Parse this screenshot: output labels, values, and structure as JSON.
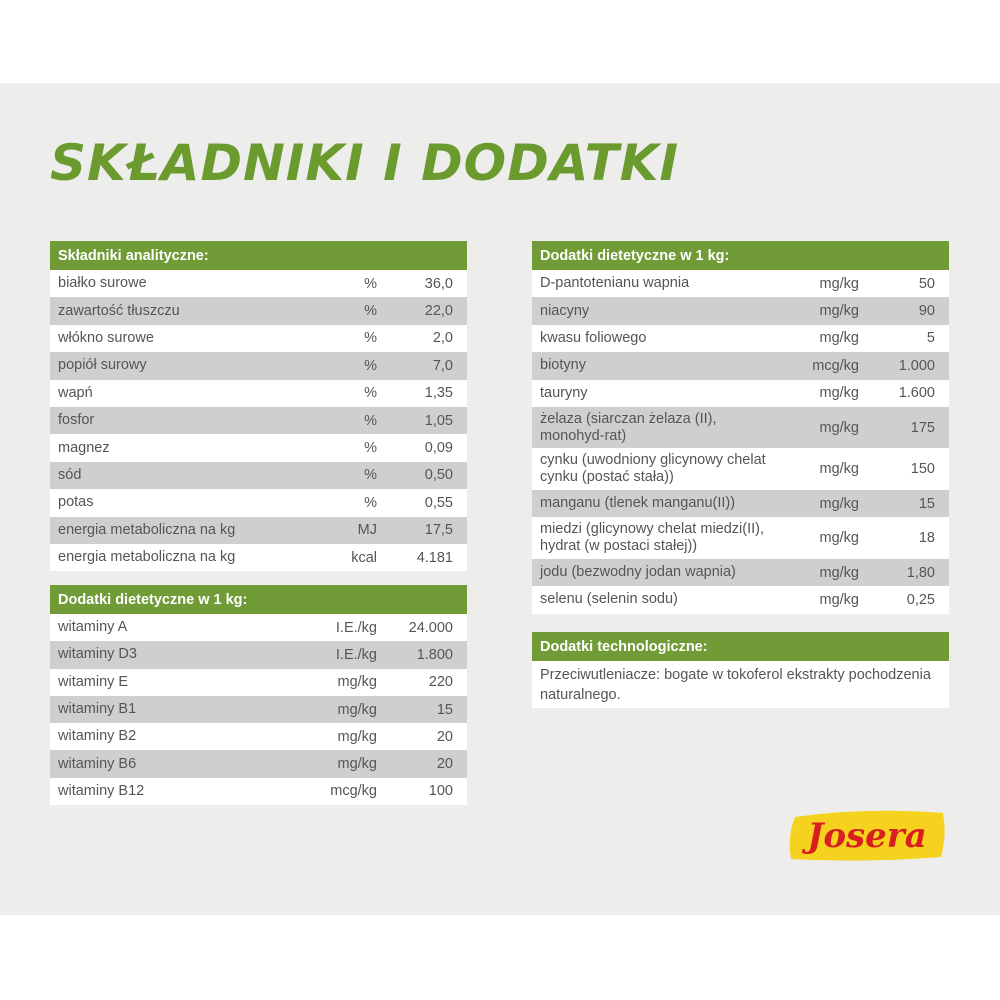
{
  "title": "SKŁADNIKI I DODATKI",
  "analytical": {
    "header": "Składniki analityczne:",
    "rows": [
      {
        "name": "białko surowe",
        "unit": "%",
        "value": "36,0"
      },
      {
        "name": "zawartość tłuszczu",
        "unit": "%",
        "value": "22,0"
      },
      {
        "name": "włókno surowe",
        "unit": "%",
        "value": "2,0"
      },
      {
        "name": "popiół surowy",
        "unit": "%",
        "value": "7,0"
      },
      {
        "name": "wapń",
        "unit": "%",
        "value": "1,35"
      },
      {
        "name": "fosfor",
        "unit": "%",
        "value": "1,05"
      },
      {
        "name": "magnez",
        "unit": "%",
        "value": "0,09"
      },
      {
        "name": "sód",
        "unit": "%",
        "value": "0,50"
      },
      {
        "name": "potas",
        "unit": "%",
        "value": "0,55"
      },
      {
        "name": "energia metaboliczna na kg",
        "unit": "MJ",
        "value": "17,5"
      },
      {
        "name": "energia metaboliczna na kg",
        "unit": "kcal",
        "value": "4.181"
      }
    ]
  },
  "vitamins": {
    "header": "Dodatki dietetyczne w 1 kg:",
    "rows": [
      {
        "name": "witaminy A",
        "unit": "I.E./kg",
        "value": "24.000"
      },
      {
        "name": "witaminy D3",
        "unit": "I.E./kg",
        "value": "1.800"
      },
      {
        "name": "witaminy E",
        "unit": "mg/kg",
        "value": "220"
      },
      {
        "name": "witaminy B1",
        "unit": "mg/kg",
        "value": "15"
      },
      {
        "name": "witaminy B2",
        "unit": "mg/kg",
        "value": "20"
      },
      {
        "name": "witaminy B6",
        "unit": "mg/kg",
        "value": "20"
      },
      {
        "name": "witaminy B12",
        "unit": "mcg/kg",
        "value": "100"
      }
    ]
  },
  "additives": {
    "header": "Dodatki dietetyczne w 1 kg:",
    "rows": [
      {
        "name": "D-pantotenianu wapnia",
        "unit": "mg/kg",
        "value": "50"
      },
      {
        "name": "niacyny",
        "unit": "mg/kg",
        "value": "90"
      },
      {
        "name": "kwasu foliowego",
        "unit": "mg/kg",
        "value": "5"
      },
      {
        "name": "biotyny",
        "unit": "mcg/kg",
        "value": "1.000"
      },
      {
        "name": "tauryny",
        "unit": "mg/kg",
        "value": "1.600"
      },
      {
        "name": "żelaza (siarczan żelaza (II), monohyd-rat)",
        "unit": "mg/kg",
        "value": "175",
        "tall": true
      },
      {
        "name": "cynku (uwodniony glicynowy chelat cynku (postać stała))",
        "unit": "mg/kg",
        "value": "150",
        "tall": true
      },
      {
        "name": "manganu (tlenek manganu(II))",
        "unit": "mg/kg",
        "value": "15"
      },
      {
        "name": "miedzi (glicynowy chelat miedzi(II), hydrat (w postaci stałej))",
        "unit": "mg/kg",
        "value": "18",
        "tall": true
      },
      {
        "name": "jodu (bezwodny jodan wapnia)",
        "unit": "mg/kg",
        "value": "1,80"
      },
      {
        "name": "selenu (selenin sodu)",
        "unit": "mg/kg",
        "value": "0,25"
      }
    ]
  },
  "technological": {
    "header": "Dodatki technologiczne:",
    "text": "Przeciwutleniacze: bogate w tokoferol ekstrakty pochodzenia naturalnego."
  },
  "logo": {
    "text": "Josera",
    "color_bg": "#f5d21d",
    "color_text": "#d81e1e"
  },
  "colors": {
    "accent": "#709b36",
    "title": "#6b9a2f",
    "stripe": "#cfd0ce",
    "panel": "#ededeb"
  }
}
